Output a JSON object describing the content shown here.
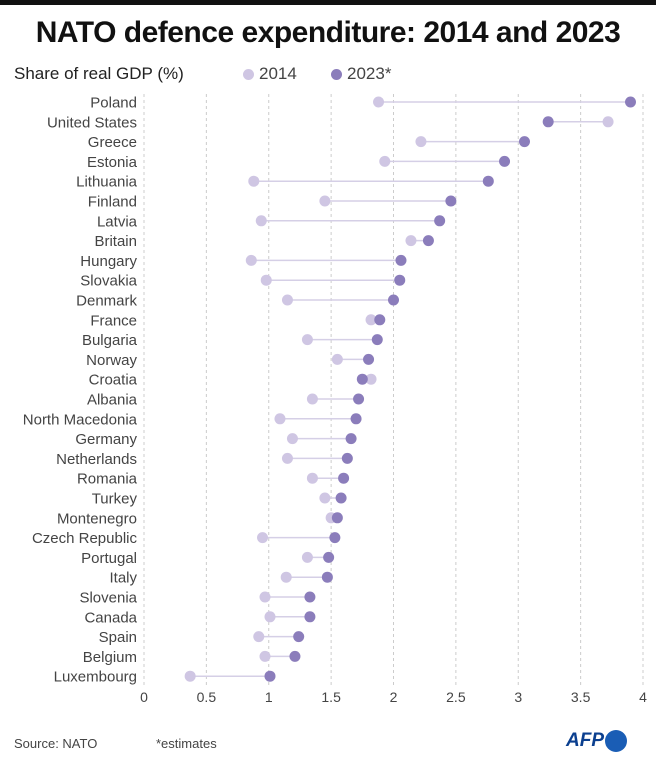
{
  "header": {
    "title": "NATO defence expenditure: 2014 and 2023",
    "subtitle": "Share of real GDP (%)"
  },
  "footer": {
    "source": "Source: NATO",
    "note": "*estimates",
    "logo": "AFP"
  },
  "colors": {
    "series_2014": "#cfc6e3",
    "series_2023": "#8b7dbb",
    "connector": "#d5cfe6",
    "grid": "#cccccc"
  },
  "chart_data": {
    "type": "dot",
    "title": "NATO defence expenditure: 2014 and 2023",
    "subtitle": "Share of real GDP (%)",
    "xlim": [
      0,
      4
    ],
    "xticks": [
      "0",
      "0.5",
      "1",
      "1.5",
      "2",
      "2.5",
      "3",
      "3.5",
      "4"
    ],
    "grid": "vertical dashed",
    "legend_position": "top",
    "categories": [
      "Poland",
      "United States",
      "Greece",
      "Estonia",
      "Lithuania",
      "Finland",
      "Latvia",
      "Britain",
      "Hungary",
      "Slovakia",
      "Denmark",
      "France",
      "Bulgaria",
      "Norway",
      "Croatia",
      "Albania",
      "North Macedonia",
      "Germany",
      "Netherlands",
      "Romania",
      "Turkey",
      "Montenegro",
      "Czech Republic",
      "Portugal",
      "Italy",
      "Slovenia",
      "Canada",
      "Spain",
      "Belgium",
      "Luxembourg"
    ],
    "series": [
      {
        "name": "2014",
        "values": [
          1.88,
          3.72,
          2.22,
          1.93,
          0.88,
          1.45,
          0.94,
          2.14,
          0.86,
          0.98,
          1.15,
          1.82,
          1.31,
          1.55,
          1.82,
          1.35,
          1.09,
          1.19,
          1.15,
          1.35,
          1.45,
          1.5,
          0.95,
          1.31,
          1.14,
          0.97,
          1.01,
          0.92,
          0.97,
          0.37
        ]
      },
      {
        "name": "2023*",
        "values": [
          3.9,
          3.24,
          3.05,
          2.89,
          2.76,
          2.46,
          2.37,
          2.28,
          2.06,
          2.05,
          2.0,
          1.89,
          1.87,
          1.8,
          1.75,
          1.72,
          1.7,
          1.66,
          1.63,
          1.6,
          1.58,
          1.55,
          1.53,
          1.48,
          1.47,
          1.33,
          1.33,
          1.24,
          1.21,
          1.01
        ]
      }
    ]
  }
}
